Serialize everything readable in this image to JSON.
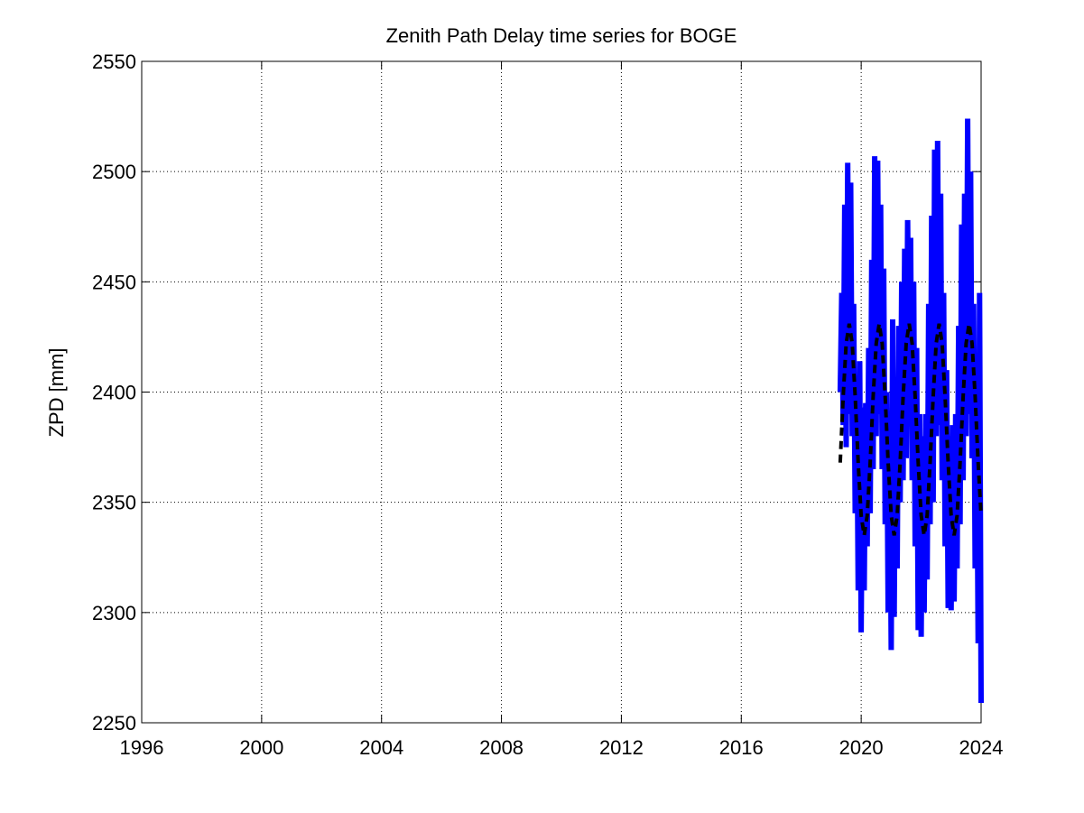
{
  "chart_data": {
    "type": "line",
    "title": "Zenith Path Delay time series for BOGE",
    "y_label": "ZPD [mm]",
    "xlim": [
      1996,
      2024
    ],
    "xticks": [
      1996,
      2000,
      2004,
      2008,
      2012,
      2016,
      2020,
      2024
    ],
    "ylim": [
      2250,
      2550
    ],
    "yticks": [
      2250,
      2300,
      2350,
      2400,
      2450,
      2500,
      2550
    ],
    "grid": true,
    "series": [
      {
        "color": "#0000ff",
        "style": "solid",
        "x": [
          2019.3,
          2019.35,
          2019.4,
          2019.45,
          2019.5,
          2019.55,
          2019.6,
          2019.65,
          2019.7,
          2019.75,
          2019.8,
          2019.85,
          2019.9,
          2019.95,
          2020.0,
          2020.05,
          2020.1,
          2020.15,
          2020.2,
          2020.25,
          2020.3,
          2020.35,
          2020.4,
          2020.45,
          2020.5,
          2020.55,
          2020.6,
          2020.65,
          2020.7,
          2020.75,
          2020.8,
          2020.85,
          2020.9,
          2020.95,
          2021.0,
          2021.05,
          2021.1,
          2021.15,
          2021.2,
          2021.25,
          2021.3,
          2021.35,
          2021.4,
          2021.45,
          2021.5,
          2021.55,
          2021.6,
          2021.65,
          2021.7,
          2021.75,
          2021.8,
          2021.85,
          2021.9,
          2021.95,
          2022.0,
          2022.05,
          2022.1,
          2022.15,
          2022.2,
          2022.25,
          2022.3,
          2022.35,
          2022.4,
          2022.45,
          2022.5,
          2022.55,
          2022.6,
          2022.65,
          2022.7,
          2022.75,
          2022.8,
          2022.85,
          2022.9,
          2022.95,
          2023.0,
          2023.05,
          2023.1,
          2023.15,
          2023.2,
          2023.25,
          2023.3,
          2023.35,
          2023.4,
          2023.45,
          2023.5,
          2023.55,
          2023.6,
          2023.65,
          2023.7,
          2023.75,
          2023.8,
          2023.85,
          2023.9,
          2023.95,
          2024.0
        ],
        "values": [
          2400,
          2445,
          2385,
          2485,
          2375,
          2504,
          2390,
          2495,
          2380,
          2440,
          2345,
          2405,
          2310,
          2414,
          2291,
          2393,
          2310,
          2395,
          2330,
          2420,
          2345,
          2460,
          2365,
          2507,
          2380,
          2505,
          2390,
          2485,
          2365,
          2456,
          2340,
          2400,
          2300,
          2385,
          2283,
          2433,
          2298,
          2400,
          2320,
          2430,
          2350,
          2450,
          2360,
          2465,
          2370,
          2478,
          2395,
          2470,
          2360,
          2450,
          2330,
          2420,
          2292,
          2390,
          2289,
          2380,
          2300,
          2390,
          2315,
          2440,
          2340,
          2480,
          2350,
          2510,
          2380,
          2514,
          2385,
          2490,
          2360,
          2445,
          2330,
          2410,
          2302,
          2380,
          2301,
          2385,
          2305,
          2390,
          2320,
          2430,
          2340,
          2476,
          2360,
          2490,
          2380,
          2524,
          2390,
          2500,
          2370,
          2440,
          2320,
          2405,
          2286,
          2445,
          2259
        ]
      },
      {
        "color": "#000000",
        "style": "dashed",
        "x": [
          2019.3,
          2019.4,
          2019.5,
          2019.6,
          2019.7,
          2019.8,
          2019.9,
          2020.0,
          2020.1,
          2020.2,
          2020.3,
          2020.4,
          2020.5,
          2020.6,
          2020.7,
          2020.8,
          2020.9,
          2021.0,
          2021.1,
          2021.2,
          2021.3,
          2021.4,
          2021.5,
          2021.6,
          2021.7,
          2021.8,
          2021.9,
          2022.0,
          2022.1,
          2022.2,
          2022.3,
          2022.4,
          2022.5,
          2022.6,
          2022.7,
          2022.8,
          2022.9,
          2023.0,
          2023.1,
          2023.2,
          2023.3,
          2023.4,
          2023.5,
          2023.6,
          2023.7,
          2023.8,
          2023.9,
          2024.0
        ],
        "values": [
          2368,
          2398,
          2422,
          2431,
          2422,
          2398,
          2368,
          2344,
          2335,
          2344,
          2368,
          2398,
          2422,
          2431,
          2422,
          2398,
          2368,
          2344,
          2335,
          2344,
          2368,
          2398,
          2422,
          2431,
          2422,
          2398,
          2368,
          2344,
          2335,
          2344,
          2368,
          2398,
          2422,
          2431,
          2422,
          2398,
          2368,
          2344,
          2335,
          2344,
          2368,
          2398,
          2422,
          2431,
          2422,
          2398,
          2368,
          2344
        ]
      }
    ]
  }
}
